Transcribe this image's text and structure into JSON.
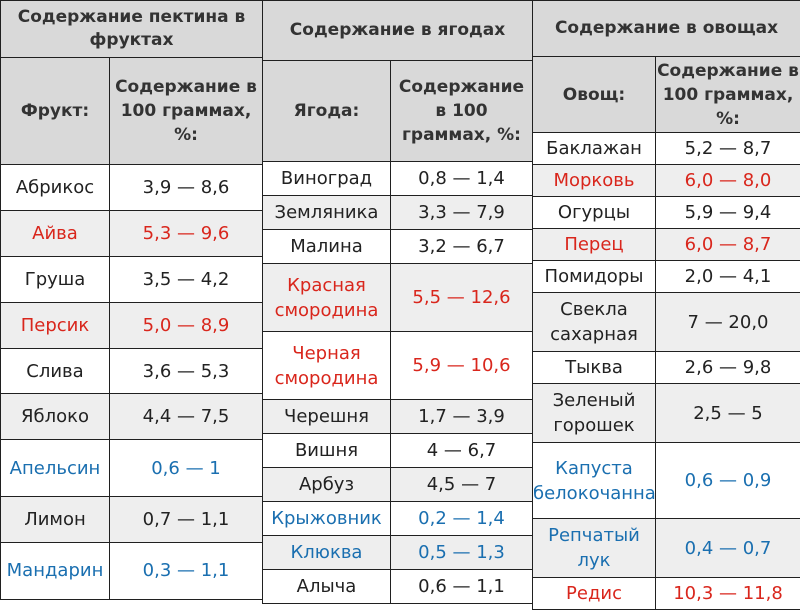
{
  "colors": {
    "header_bg": "#d9d9d9",
    "red": "#d9261c",
    "blue": "#1a6fb0"
  },
  "fruits": {
    "title": "Содержание пектина в фруктах",
    "col1": "Фрукт:",
    "col2": "Содержание в 100 граммах, %:",
    "rows": [
      {
        "name": "Абрикос",
        "value": "3,9 — 8,6",
        "color": "default"
      },
      {
        "name": "Айва",
        "value": "5,3 — 9,6",
        "color": "red"
      },
      {
        "name": "Груша",
        "value": "3,5 — 4,2",
        "color": "default"
      },
      {
        "name": "Персик",
        "value": "5,0 — 8,9",
        "color": "red"
      },
      {
        "name": "Слива",
        "value": "3,6 — 5,3",
        "color": "default"
      },
      {
        "name": "Яблоко",
        "value": "4,4 — 7,5",
        "color": "default"
      },
      {
        "name": "Апельсин",
        "value": "0,6 — 1",
        "color": "blue"
      },
      {
        "name": "Лимон",
        "value": "0,7 — 1,1",
        "color": "default"
      },
      {
        "name": "Мандарин",
        "value": "0,3 — 1,1",
        "color": "blue"
      }
    ]
  },
  "berries": {
    "title": "Содержание в ягодах",
    "col1": "Ягода:",
    "col2": "Содержание в 100 граммах, %:",
    "rows": [
      {
        "name": "Виноград",
        "value": "0,8 — 1,4",
        "color": "default"
      },
      {
        "name": "Земляника",
        "value": "3,3 — 7,9",
        "color": "default"
      },
      {
        "name": "Малина",
        "value": "3,2 — 6,7",
        "color": "default"
      },
      {
        "name": "Красная смородина",
        "value": "5,5 — 12,6",
        "color": "red"
      },
      {
        "name": "Черная смородина",
        "value": "5,9 — 10,6",
        "color": "red"
      },
      {
        "name": "Черешня",
        "value": "1,7 — 3,9",
        "color": "default"
      },
      {
        "name": "Вишня",
        "value": "4 — 6,7",
        "color": "default"
      },
      {
        "name": "Арбуз",
        "value": "4,5 — 7",
        "color": "default"
      },
      {
        "name": "Крыжовник",
        "value": "0,2 — 1,4",
        "color": "blue"
      },
      {
        "name": "Клюква",
        "value": "0,5 — 1,3",
        "color": "blue"
      },
      {
        "name": "Алыча",
        "value": "0,6 — 1,1",
        "color": "default"
      }
    ]
  },
  "vegetables": {
    "title": "Содержание в овощах",
    "col1": "Овощ:",
    "col2": "Содержание в 100 граммах, %:",
    "rows": [
      {
        "name": "Баклажан",
        "value": "5,2 — 8,7",
        "color": "default"
      },
      {
        "name": "Морковь",
        "value": "6,0 — 8,0",
        "color": "red"
      },
      {
        "name": "Огурцы",
        "value": "5,9 — 9,4",
        "color": "default"
      },
      {
        "name": "Перец",
        "value": "6,0 — 8,7",
        "color": "red"
      },
      {
        "name": "Помидоры",
        "value": "2,0 — 4,1",
        "color": "default"
      },
      {
        "name": "Свекла сахарная",
        "value": "7 — 20,0",
        "color": "default"
      },
      {
        "name": "Тыква",
        "value": "2,6 — 9,8",
        "color": "default"
      },
      {
        "name": "Зеленый горошек",
        "value": "2,5 — 5",
        "color": "default"
      },
      {
        "name": "Капуста белокочанная",
        "value": "0,6 — 0,9",
        "color": "blue"
      },
      {
        "name": "Репчатый лук",
        "value": "0,4 — 0,7",
        "color": "blue"
      },
      {
        "name": "Редис",
        "value": "10,3 — 11,8",
        "color": "red"
      }
    ]
  }
}
